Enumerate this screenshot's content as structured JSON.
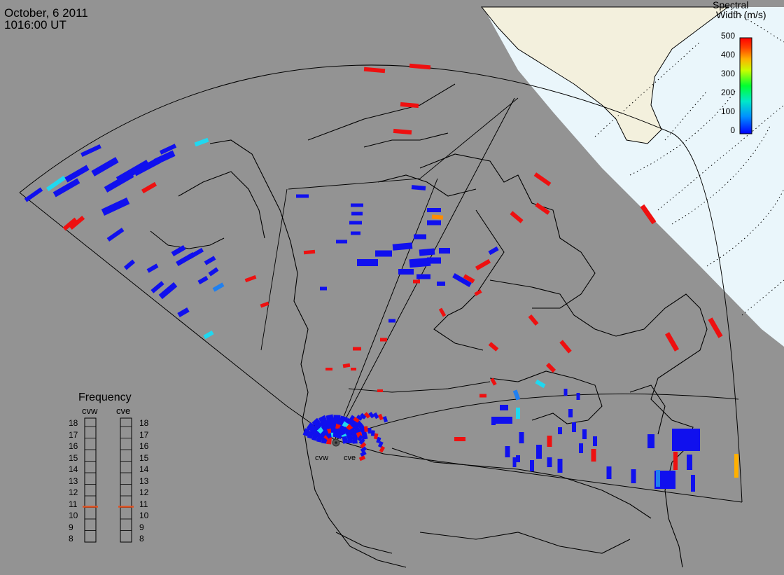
{
  "header": {
    "date": "October, 6 2011",
    "time": "1016:00 UT"
  },
  "colorbar": {
    "title_line1": "Spectral",
    "title_line2": "Width (m/s)",
    "ticks": [
      "500",
      "400",
      "300",
      "200",
      "100",
      "0"
    ],
    "min": 0,
    "max": 500,
    "palette": [
      "#0000ff",
      "#00c8ff",
      "#00ff64",
      "#ffff00",
      "#ff8000",
      "#ff0000"
    ]
  },
  "frequency_panel": {
    "title": "Frequency",
    "left_radar": "cvw",
    "right_radar": "cve",
    "ticks": [
      "18",
      "17",
      "16",
      "15",
      "14",
      "13",
      "12",
      "11",
      "10",
      "9",
      "8"
    ],
    "cvw_frequency": 10.7,
    "cve_frequency": 10.7,
    "marker_color": "#e05020"
  },
  "radars": {
    "west": "cvw",
    "east": "cve"
  },
  "colors": {
    "background": "#939393",
    "daylight_region": "#eaf6fb",
    "land_ice": "#f3f0dd",
    "low_width": "#1010ee",
    "high_width": "#ee1010"
  }
}
